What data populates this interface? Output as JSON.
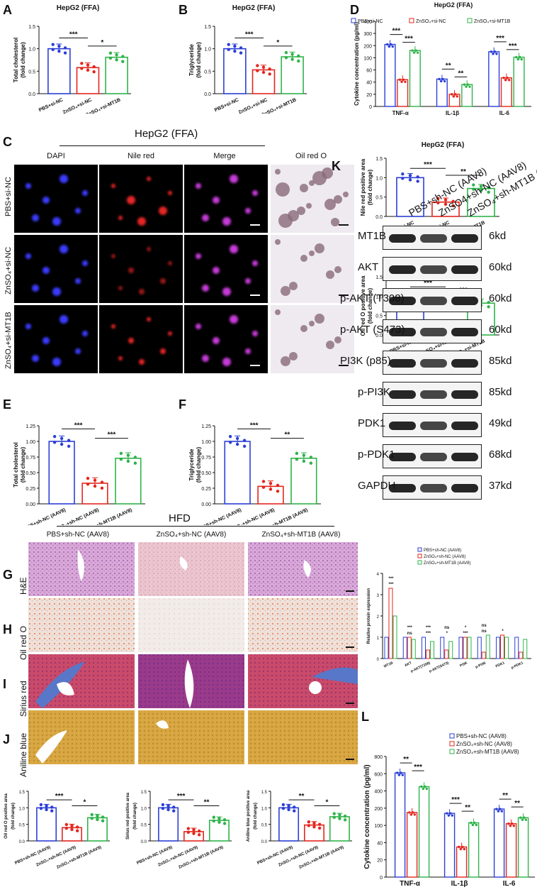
{
  "panels": {
    "A": {
      "letter": "A",
      "title": "HepG2 (FFA)",
      "ylabel": "Total cholesterol\n(fold change)",
      "ylim": [
        0,
        1.5
      ],
      "yticks": [
        "0.0",
        "0.5",
        "1.0",
        "1.5"
      ],
      "categories": [
        "PBS+si-NC",
        "ZnSO₄+si-NC",
        "ZnSO₄+si-MT1B"
      ],
      "values": [
        1.0,
        0.58,
        0.81
      ],
      "sig": [
        "***",
        "*"
      ]
    },
    "B": {
      "letter": "B",
      "title": "HepG2 (FFA)",
      "ylabel": "Triglyceride\n(fold change)",
      "ylim": [
        0,
        1.5
      ],
      "yticks": [
        "0.0",
        "0.5",
        "1.0",
        "1.5"
      ],
      "categories": [
        "PBS+si-NC",
        "ZnSO₄+si-NC",
        "ZnSO₄+si-MT1B"
      ],
      "values": [
        1.0,
        0.53,
        0.82
      ],
      "sig": [
        "***",
        "*"
      ]
    },
    "D": {
      "letter": "D",
      "title": "HepG2 (FFA)",
      "ylabel": "Cytokine concentration (pg/ml)",
      "yticks": [
        "0",
        "20",
        "40",
        "60",
        "100",
        "200",
        "300",
        "400"
      ],
      "legend": [
        "PBS+si-NC",
        "ZnSO₄+si-NC",
        "ZnSO₄+si-MT1B"
      ],
      "categories": [
        "TNF-α",
        "IL-1β",
        "IL-6"
      ],
      "series": [
        {
          "name": "PBS+si-NC",
          "values": [
            210,
            45,
            150
          ]
        },
        {
          "name": "ZnSO₄+si-NC",
          "values": [
            44,
            20,
            47
          ]
        },
        {
          "name": "ZnSO₄+si-MT1B",
          "values": [
            160,
            36,
            105
          ]
        }
      ],
      "sig": [
        "***",
        "***",
        "**",
        "**",
        "***",
        "***"
      ]
    },
    "C": {
      "letter": "C",
      "title": "HepG2 (FFA)",
      "columns": [
        "DAPI",
        "Nile red",
        "Merge",
        "Oil red O"
      ],
      "rows": [
        "PBS+si-NC",
        "ZnSO₄+si-NC",
        "ZnSO₄+si-MT1B"
      ]
    },
    "C1": {
      "title": "HepG2 (FFA)",
      "ylabel": "Nile red positive area\n(fold change)",
      "yticks": [
        "0.0",
        "0.5",
        "1.0",
        "1.5"
      ],
      "categories": [
        "PBS+si-NC",
        "ZnSO₄+si-NC",
        "ZnSO₄+si-MT1B"
      ],
      "values": [
        1.0,
        0.37,
        0.72
      ],
      "sig": [
        "***",
        "**"
      ]
    },
    "C2": {
      "title": "HepG2 (FFA)",
      "ylabel": "Oil red O positive area\n(fold change)",
      "yticks": [
        "0.0",
        "0.5",
        "1.0",
        "1.5"
      ],
      "categories": [
        "PBS+si-NC",
        "ZnSO₄+si-NC",
        "ZnSO₄+si-MT1B"
      ],
      "values": [
        1.0,
        0.27,
        0.82
      ],
      "sig": [
        "***",
        "***"
      ]
    },
    "E": {
      "letter": "E",
      "ylabel": "Total cholesterol\n(fold change)",
      "yticks": [
        "0.00",
        "0.25",
        "0.50",
        "0.75",
        "1.00",
        "1.25"
      ],
      "categories": [
        "PBS+sh-NC (AAV8)",
        "ZnSO₄+sh-NC (AAV8)",
        "ZnSO₄+sh-MT1B (AAV8)"
      ],
      "values": [
        1.0,
        0.33,
        0.73
      ],
      "sig": [
        "***",
        "***"
      ]
    },
    "F": {
      "letter": "F",
      "ylabel": "Triglyceride\n(fold change)",
      "yticks": [
        "0.00",
        "0.25",
        "0.50",
        "0.75",
        "1.00",
        "1.25"
      ],
      "categories": [
        "PBS+sh-NC (AAV8)",
        "ZnSO₄+sh-NC (AAV8)",
        "ZnSO₄+sh-MT1B (AAV8)"
      ],
      "values": [
        1.0,
        0.28,
        0.73
      ],
      "sig": [
        "***",
        "**"
      ]
    },
    "HFD": {
      "title": "HFD",
      "columns": [
        "PBS+sh-NC (AAV8)",
        "ZnSO₄+sh-NC (AAV8)",
        "ZnSO₄+sh-MT1B (AAV8)"
      ],
      "rows": [
        {
          "letter": "G",
          "label": "H&E"
        },
        {
          "letter": "H",
          "label": "Oil red O"
        },
        {
          "letter": "I",
          "label": "Sirius red"
        },
        {
          "letter": "J",
          "label": "Aniline blue"
        }
      ]
    },
    "J1": {
      "ylabel": "Oil red O positive area\n(fold change)",
      "yticks": [
        "0.0",
        "0.5",
        "1.0",
        "1.5"
      ],
      "categories": [
        "PBS+sh-NC (AAV9)",
        "ZnSO₄+sh-NC (AAV9)",
        "ZnSO₄+sh-MT1B (AAV9)"
      ],
      "values": [
        1.0,
        0.4,
        0.7
      ],
      "sig": [
        "***",
        "*"
      ]
    },
    "J2": {
      "ylabel": "Sirius red positive area\n(fold change)",
      "yticks": [
        "0.0",
        "0.5",
        "1.0",
        "1.5"
      ],
      "categories": [
        "PBS+sh-NC (AAV9)",
        "ZnSO₄+sh-NC (AAV9)",
        "ZnSO₄+sh-MT1B (AAV9)"
      ],
      "values": [
        1.0,
        0.28,
        0.62
      ],
      "sig": [
        "***",
        "**"
      ]
    },
    "J3": {
      "ylabel": "Aniline blue positive area\n(fold change)",
      "yticks": [
        "0.0",
        "0.5",
        "1.0",
        "1.5"
      ],
      "categories": [
        "PBS+sh-NC (AAV9)",
        "ZnSO₄+sh-NC (AAV9)",
        "ZnSO₄+sh-MT1B (AAV9)"
      ],
      "values": [
        1.0,
        0.48,
        0.73
      ],
      "sig": [
        "**",
        "*"
      ]
    },
    "K": {
      "letter": "K",
      "lanes": [
        "PBS+sh-NC (AAV8)",
        "ZnSO4+sh-NC (AAV8)",
        "ZnSO₄+sh-MT1B (AAV8)"
      ],
      "blots": [
        {
          "name": "MT1B",
          "kd": "6kd"
        },
        {
          "name": "AKT",
          "kd": "60kd"
        },
        {
          "name": "p-AKT (T308)",
          "kd": "60kd"
        },
        {
          "name": "p-AKT (S473)",
          "kd": "60kd"
        },
        {
          "name": "PI3K (p85)",
          "kd": "85kd"
        },
        {
          "name": "p-PI3K",
          "kd": "85kd"
        },
        {
          "name": "PDK1",
          "kd": "49kd"
        },
        {
          "name": "p-PDK1",
          "kd": "68kd"
        },
        {
          "name": "GAPDH",
          "kd": "37kd"
        }
      ]
    },
    "K1": {
      "ylabel": "Relative protein expression",
      "yticks": [
        "0",
        "1",
        "2",
        "3",
        "4"
      ],
      "legend": [
        "PBS+sh-NC (AAV8)",
        "ZnSO₄+sh-NC (AAV8)",
        "ZnSO₄+sh-MT1B (AAV8)"
      ],
      "categories": [
        "MT1B",
        "AKT",
        "p-AKT(T308)",
        "p-AKT(S473)",
        "PI3K",
        "p-PI3K",
        "PDK1",
        "p-PDK1"
      ],
      "series": [
        {
          "name": "PBS+sh-NC (AAV8)",
          "values": [
            1.0,
            1.0,
            1.0,
            1.0,
            1.0,
            1.0,
            1.0,
            1.0
          ]
        },
        {
          "name": "ZnSO₄+sh-NC (AAV8)",
          "values": [
            3.3,
            1.0,
            0.4,
            0.4,
            1.0,
            0.3,
            1.1,
            0.3
          ]
        },
        {
          "name": "ZnSO₄+sh-MT1B (AAV8)",
          "values": [
            2.0,
            0.9,
            0.8,
            0.8,
            1.0,
            1.1,
            1.0,
            0.9
          ]
        }
      ],
      "sig": [
        "***",
        "***",
        "ns",
        "***",
        "***",
        "***",
        "*",
        "ns",
        "***",
        "*",
        "ns",
        "ns",
        "*"
      ]
    },
    "L": {
      "letter": "L",
      "ylabel": "Cytokine concentration (pg/ml)",
      "yticks": [
        "0",
        "20",
        "40",
        "100",
        "200",
        "400",
        "600",
        "800"
      ],
      "legend": [
        "PBS+sh-NC (AAV8)",
        "ZnSO₄+sh-NC (AAV8)",
        "ZnSO₄+sh-MT1B (AAV8)"
      ],
      "categories": [
        "TNF-α",
        "IL-1β",
        "IL-6"
      ],
      "series": [
        {
          "name": "PBS+sh-NC (AAV8)",
          "values": [
            610,
            170,
            195
          ]
        },
        {
          "name": "ZnSO₄+sh-NC (AAV8)",
          "values": [
            175,
            35,
            110
          ]
        },
        {
          "name": "ZnSO₄+sh-MT1B (AAV8)",
          "values": [
            450,
            115,
            145
          ]
        }
      ],
      "sig": [
        "**",
        "***",
        "***",
        "**",
        "**",
        "**"
      ]
    }
  },
  "colors": {
    "blue": "#2b3fd6",
    "red": "#e3261e",
    "green": "#2fb34a"
  },
  "chart_data": [
    {
      "type": "bar",
      "title": "HepG2 (FFA)",
      "ylabel": "Total cholesterol (fold change)",
      "categories": [
        "PBS+si-NC",
        "ZnSO₄+si-NC",
        "ZnSO₄+si-MT1B"
      ],
      "values": [
        1.0,
        0.58,
        0.81
      ],
      "ylim": [
        0,
        1.5
      ]
    },
    {
      "type": "bar",
      "title": "HepG2 (FFA)",
      "ylabel": "Triglyceride (fold change)",
      "categories": [
        "PBS+si-NC",
        "ZnSO₄+si-NC",
        "ZnSO₄+si-MT1B"
      ],
      "values": [
        1.0,
        0.53,
        0.82
      ],
      "ylim": [
        0,
        1.5
      ]
    }
  ]
}
